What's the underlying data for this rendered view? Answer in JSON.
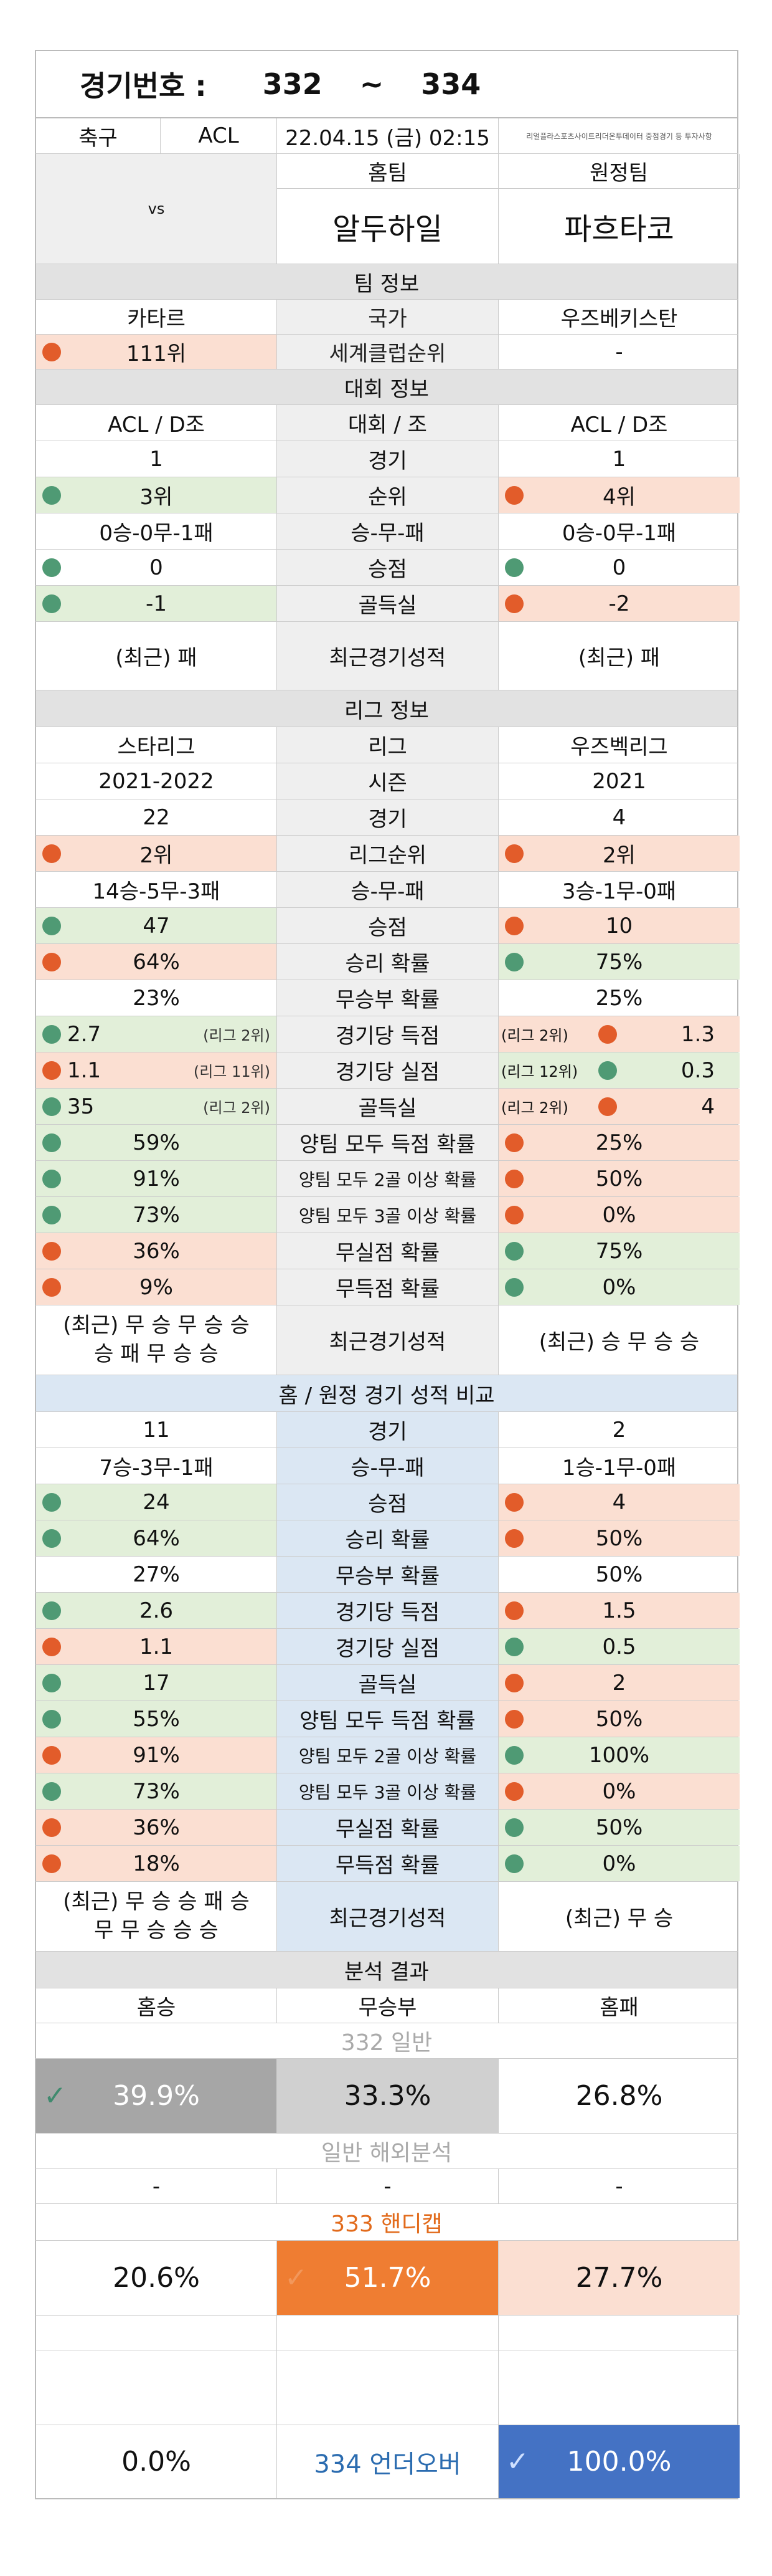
{
  "header": {
    "label": "경기번호 :",
    "from": "332",
    "tilde": "~",
    "to": "334"
  },
  "meta": {
    "sport": "축구",
    "league": "ACL",
    "datetime": "22.04.15 (금) 02:15",
    "note": "리얼플라스포츠사이트리더온투데이터 중점경기 등 투자사항"
  },
  "teams": {
    "home_label": "홈팀",
    "away_label": "원정팀",
    "home": "알두하일",
    "vs": "vs",
    "away": "파흐타코"
  },
  "team_info": {
    "title": "팀 정보",
    "rows": [
      {
        "label": "국가",
        "home": "카타르",
        "away": "우즈베키스탄"
      },
      {
        "label": "세계클럽순위",
        "home": "111위",
        "away": "-"
      }
    ]
  },
  "competition": {
    "title": "대회 정보",
    "header": {
      "label": "대회 / 조",
      "home": "ACL / D조",
      "away": "ACL / D조"
    },
    "rows": [
      {
        "label": "경기",
        "home": "1",
        "away": "1"
      },
      {
        "label": "순위",
        "home": "3위",
        "away": "4위"
      },
      {
        "label": "승-무-패",
        "home": "0승-0무-1패",
        "away": "0승-0무-1패"
      },
      {
        "label": "승점",
        "home": "0",
        "away": "0"
      },
      {
        "label": "골득실",
        "home": "-1",
        "away": "-2"
      },
      {
        "label": "최근경기성적",
        "home": "(최근) 패",
        "away": "(최근) 패"
      }
    ]
  },
  "league": {
    "title": "리그 정보",
    "rows": [
      {
        "label": "리그",
        "home": "스타리그",
        "away": "우즈벡리그"
      },
      {
        "label": "시즌",
        "home": "2021-2022",
        "away": "2021"
      },
      {
        "label": "경기",
        "home": "22",
        "away": "4"
      },
      {
        "label": "리그순위",
        "home": "2위",
        "away": "2위"
      },
      {
        "label": "승-무-패",
        "home": "14승-5무-3패",
        "away": "3승-1무-0패"
      },
      {
        "label": "승점",
        "home": "47",
        "away": "10"
      },
      {
        "label": "승리 확률",
        "home": "64%",
        "away": "75%"
      },
      {
        "label": "무승부 확률",
        "home": "23%",
        "away": "25%"
      },
      {
        "label": "경기당 득점",
        "home": "2.7",
        "home_rank": "(리그 2위)",
        "away": "1.3",
        "away_rank": "(리그 2위)"
      },
      {
        "label": "경기당 실점",
        "home": "1.1",
        "home_rank": "(리그 11위)",
        "away": "0.3",
        "away_rank": "(리그 12위)"
      },
      {
        "label": "골득실",
        "home": "35",
        "home_rank": "(리그 2위)",
        "away": "4",
        "away_rank": "(리그 2위)"
      },
      {
        "label": "양팀 모두 득점 확률",
        "home": "59%",
        "away": "25%"
      },
      {
        "label": "양팀 모두 2골 이상 확률",
        "home": "91%",
        "away": "50%"
      },
      {
        "label": "양팀 모두 3골 이상 확률",
        "home": "73%",
        "away": "0%"
      },
      {
        "label": "무실점 확률",
        "home": "36%",
        "away": "75%"
      },
      {
        "label": "무득점 확률",
        "home": "9%",
        "away": "0%"
      },
      {
        "label": "최근경기성적",
        "home_l1": "(최근) 무 승 무 승 승",
        "home_l2": "승 패 무 승 승",
        "away": "(최근) 승 무 승 승"
      }
    ]
  },
  "homeaway": {
    "title": "홈 / 원정 경기 성적 비교",
    "rows": [
      {
        "label": "경기",
        "home": "11",
        "away": "2"
      },
      {
        "label": "승-무-패",
        "home": "7승-3무-1패",
        "away": "1승-1무-0패"
      },
      {
        "label": "승점",
        "home": "24",
        "away": "4"
      },
      {
        "label": "승리 확률",
        "home": "64%",
        "away": "50%"
      },
      {
        "label": "무승부 확률",
        "home": "27%",
        "away": "50%"
      },
      {
        "label": "경기당 득점",
        "home": "2.6",
        "away": "1.5"
      },
      {
        "label": "경기당 실점",
        "home": "1.1",
        "away": "0.5"
      },
      {
        "label": "골득실",
        "home": "17",
        "away": "2"
      },
      {
        "label": "양팀 모두 득점 확률",
        "home": "55%",
        "away": "50%"
      },
      {
        "label": "양팀 모두 2골 이상 확률",
        "home": "91%",
        "away": "100%"
      },
      {
        "label": "양팀 모두 3골 이상 확률",
        "home": "73%",
        "away": "0%"
      },
      {
        "label": "무실점 확률",
        "home": "36%",
        "away": "50%"
      },
      {
        "label": "무득점 확률",
        "home": "18%",
        "away": "0%"
      },
      {
        "label": "최근경기성적",
        "home_l1": "(최근) 무 승 승 패 승",
        "home_l2": "무 무 승 승 승",
        "away": "(최근) 무 승"
      }
    ]
  },
  "analysis": {
    "title": "분석 결과",
    "cols": {
      "home": "홈승",
      "draw": "무승부",
      "away": "홈패"
    },
    "general": {
      "title": "332 일반",
      "home": "39.9%",
      "draw": "33.3%",
      "away": "26.8%"
    },
    "overseas": {
      "title": "일반 해외분석",
      "home": "-",
      "draw": "-",
      "away": "-"
    },
    "handicap": {
      "title": "333 핸디캡",
      "home": "20.6%",
      "draw": "51.7%",
      "away": "27.7%"
    },
    "underover": {
      "title": "334 언더오버",
      "under": "0.0%",
      "over": "100.0%"
    }
  },
  "colors": {
    "pink": "#fbdfd2",
    "green": "#e2efd9",
    "orange": "#ef7d32",
    "blue": "#4472c4",
    "gray": "#a6a6a6",
    "title_gray": "#e2e2e2",
    "title_blue": "#dbe7f3"
  }
}
